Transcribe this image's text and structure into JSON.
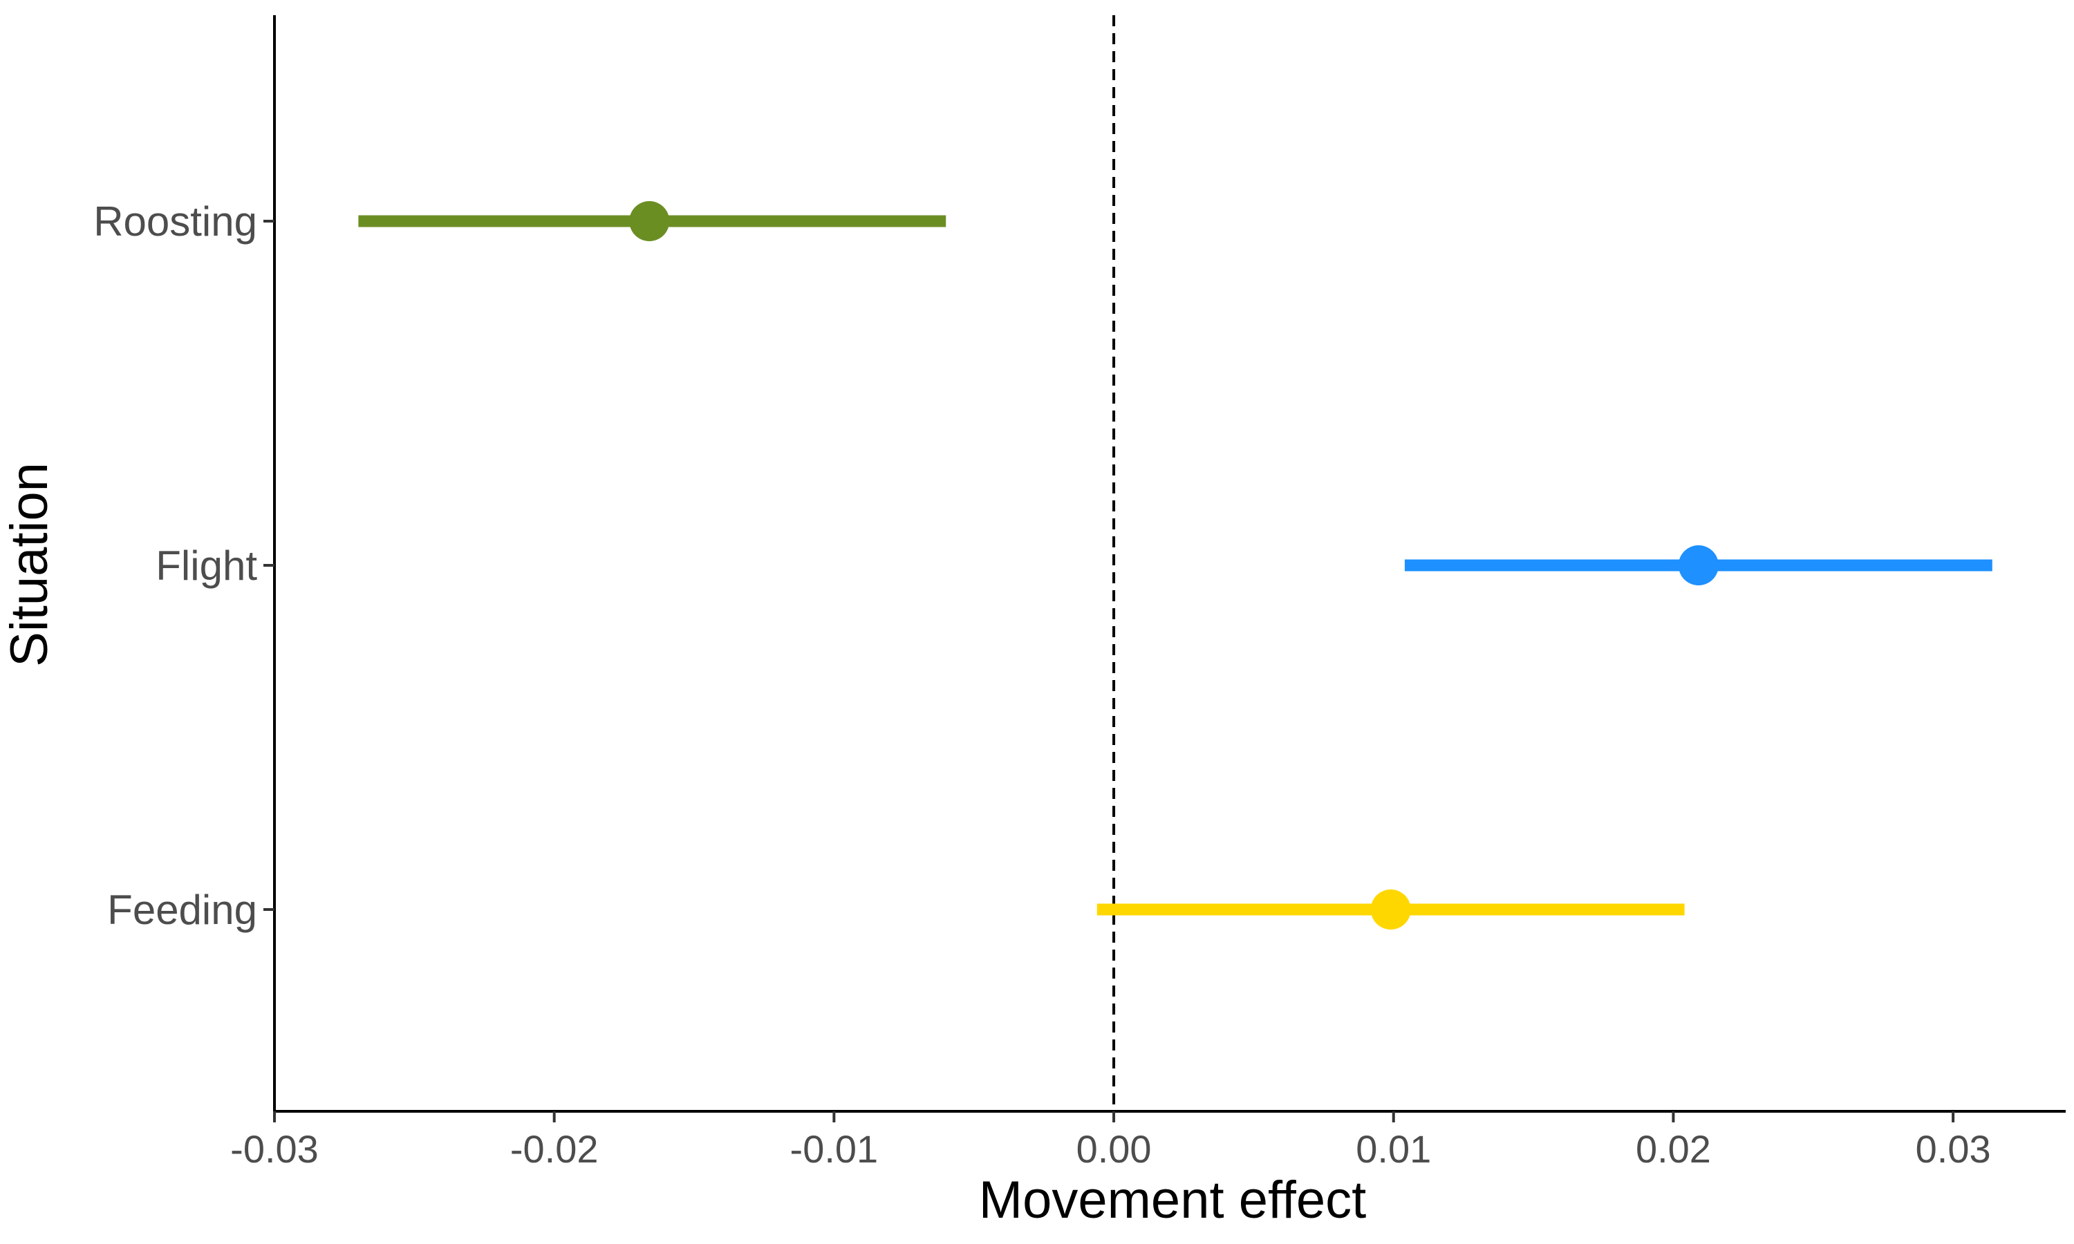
{
  "chart_data": {
    "type": "scatter",
    "title": "",
    "xlabel": "Movement effect",
    "ylabel": "Situation",
    "xlim": [
      -0.03,
      0.034
    ],
    "x_ticks": [
      "-0.03",
      "-0.02",
      "-0.01",
      "0.00",
      "0.01",
      "0.02",
      "0.03"
    ],
    "categories": [
      "Roosting",
      "Flight",
      "Feeding"
    ],
    "reference_line": {
      "x": 0,
      "style": "dashed"
    },
    "grid": false,
    "legend": "none",
    "points": [
      {
        "category": "Roosting",
        "estimate": -0.0166,
        "lower": -0.027,
        "upper": -0.006,
        "color": "#6b8e23"
      },
      {
        "category": "Flight",
        "estimate": 0.0209,
        "lower": 0.0104,
        "upper": 0.0314,
        "color": "#1e90ff"
      },
      {
        "category": "Feeding",
        "estimate": 0.0099,
        "lower": -0.0006,
        "upper": 0.0204,
        "color": "#ffd700"
      }
    ]
  }
}
